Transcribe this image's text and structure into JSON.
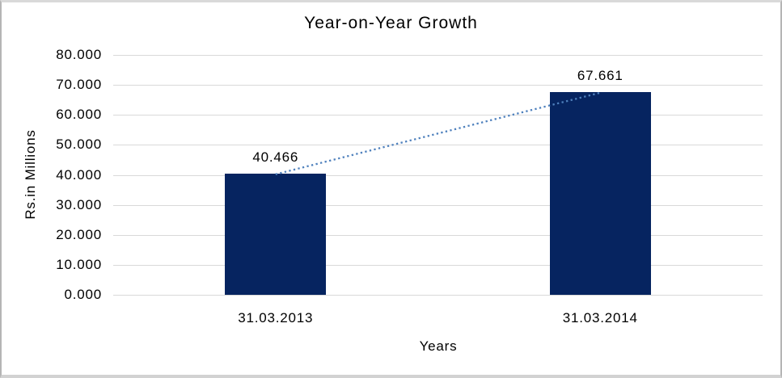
{
  "chart_data": {
    "type": "bar",
    "title": "Year-on-Year Growth",
    "categories": [
      "31.03.2013",
      "31.03.2014"
    ],
    "values": [
      40.466,
      67.661
    ],
    "value_labels": [
      "40.466",
      "67.661"
    ],
    "xlabel": "Years",
    "ylabel": "Rs.in Millions",
    "ylim": [
      0,
      80
    ],
    "y_ticks": [
      {
        "value": 0,
        "label": "0.000"
      },
      {
        "value": 10,
        "label": "10.000"
      },
      {
        "value": 20,
        "label": "20.000"
      },
      {
        "value": 30,
        "label": "30.000"
      },
      {
        "value": 40,
        "label": "40.000"
      },
      {
        "value": 50,
        "label": "50.000"
      },
      {
        "value": 60,
        "label": "60.000"
      },
      {
        "value": 70,
        "label": "70.000"
      },
      {
        "value": 80,
        "label": "80.000"
      }
    ],
    "grid": true,
    "legend": "none",
    "trendline": {
      "style": "dotted",
      "from": {
        "category": "31.03.2013",
        "value": 40.466
      },
      "to": {
        "category": "31.03.2014",
        "value": 67.661
      }
    },
    "colors": {
      "bar": "#062460",
      "trendline": "#4f81bd",
      "gridline": "#d9d9d9",
      "text": "#000000",
      "frame_border": "#c9c9c9",
      "background": "#ffffff"
    }
  }
}
